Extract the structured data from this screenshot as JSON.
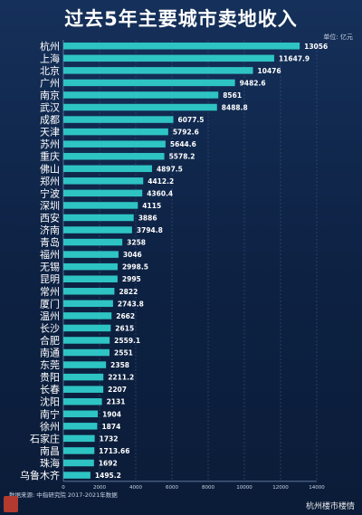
{
  "title": "过去5年主要城市卖地收入",
  "unit_label": "单位: 亿元",
  "source": "数据来源: 中指研究院   2017-2021年数据",
  "logo_text": "乐栈地产",
  "watermark": "杭州楼市楼情",
  "colors": {
    "bar": "#2ec4c4",
    "background": "#0f2446",
    "text": "#ffffff"
  },
  "chart_data": {
    "type": "bar",
    "orientation": "horizontal",
    "title": "过去5年主要城市卖地收入",
    "xlabel": "",
    "ylabel": "",
    "xlim": [
      0,
      14000
    ],
    "xticks": [
      0,
      2000,
      4000,
      6000,
      8000,
      10000,
      12000,
      14000
    ],
    "grid": true,
    "categories": [
      "杭州",
      "上海",
      "北京",
      "广州",
      "南京",
      "武汉",
      "成都",
      "天津",
      "苏州",
      "重庆",
      "佛山",
      "郑州",
      "宁波",
      "深圳",
      "西安",
      "济南",
      "青岛",
      "福州",
      "无锡",
      "昆明",
      "常州",
      "厦门",
      "温州",
      "长沙",
      "合肥",
      "南通",
      "东莞",
      "贵阳",
      "长春",
      "沈阳",
      "南宁",
      "徐州",
      "石家庄",
      "南昌",
      "珠海",
      "乌鲁木齐"
    ],
    "values": [
      13056,
      11647.9,
      10476,
      9482.6,
      8561,
      8488.8,
      6077.5,
      5792.6,
      5644.6,
      5578.2,
      4897.5,
      4412.2,
      4360.4,
      4115,
      3886,
      3794.8,
      3258,
      3046,
      2998.5,
      2995,
      2822,
      2743.8,
      2662,
      2615,
      2559.1,
      2551,
      2358,
      2211.2,
      2207,
      2131,
      1904,
      1874,
      1732,
      1713.66,
      1692,
      1495.2
    ],
    "value_labels": [
      "13056",
      "11647.9",
      "10476",
      "9482.6",
      "8561",
      "8488.8",
      "6077.5",
      "5792.6",
      "5644.6",
      "5578.2",
      "4897.5",
      "4412.2",
      "4360.4",
      "4115",
      "3886",
      "3794.8",
      "3258",
      "3046",
      "2998.5",
      "2995",
      "2822",
      "2743.8",
      "2662",
      "2615",
      "2559.1",
      "2551",
      "2358",
      "2211.2",
      "2207",
      "2131",
      "1904",
      "1874",
      "1732",
      "1713.66",
      "1692",
      "1495.2"
    ]
  }
}
